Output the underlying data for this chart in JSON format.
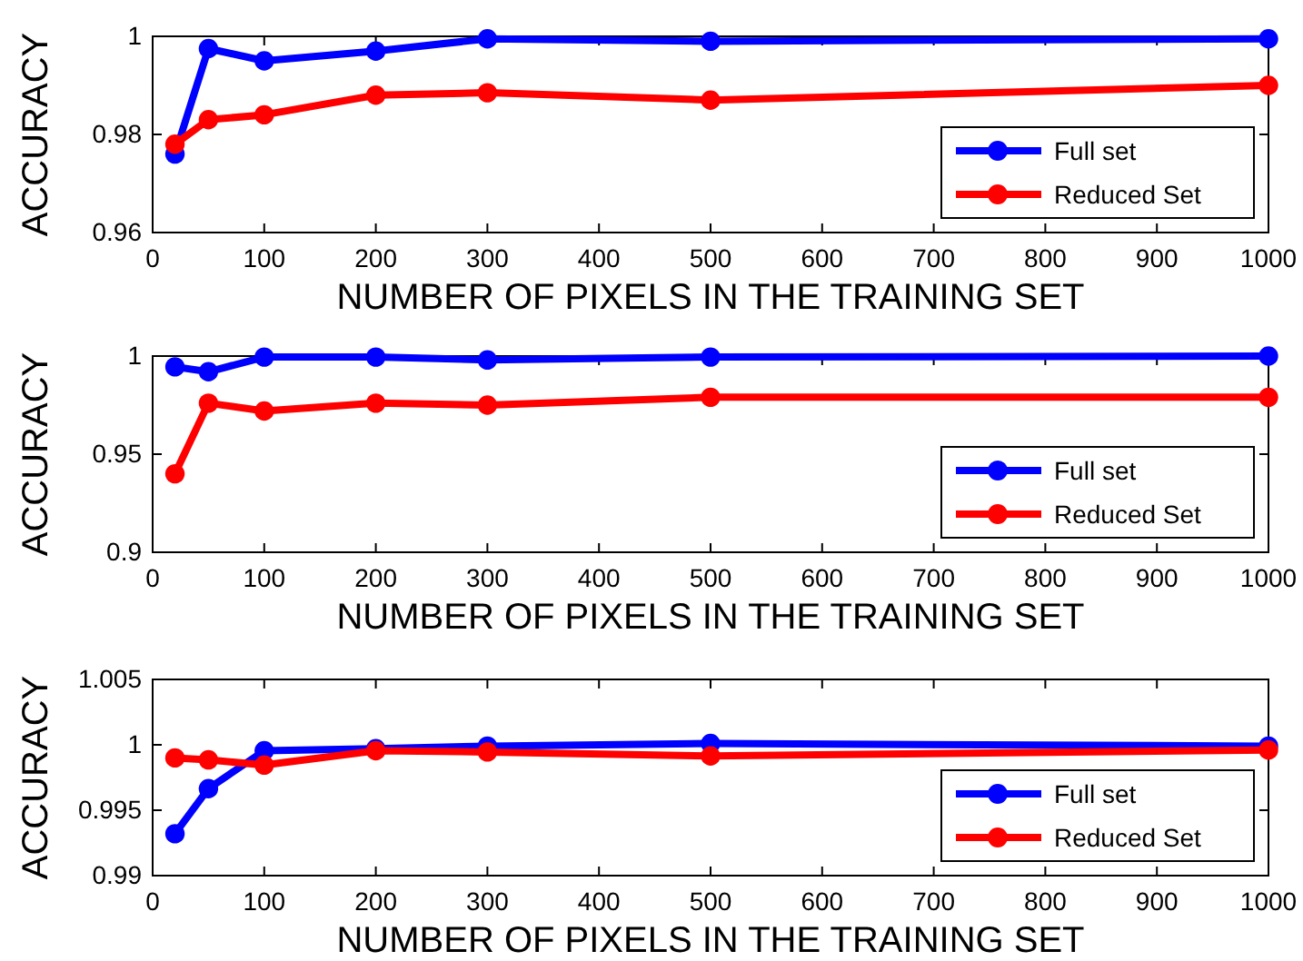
{
  "chart_data": [
    {
      "type": "line",
      "xlabel": "NUMBER OF PIXELS IN THE TRAINING SET",
      "ylabel": "ACCURACY",
      "x": [
        20,
        50,
        100,
        200,
        300,
        500,
        1000
      ],
      "series": [
        {
          "name": "Full set",
          "color": "#0000ff",
          "values": [
            0.976,
            0.9975,
            0.995,
            0.997,
            0.9995,
            0.999,
            0.9995
          ]
        },
        {
          "name": "Reduced Set",
          "color": "#ff0000",
          "values": [
            0.978,
            0.983,
            0.984,
            0.988,
            0.9885,
            0.987,
            0.99
          ]
        }
      ],
      "xlim": [
        0,
        1000
      ],
      "xticks": [
        0,
        100,
        200,
        300,
        400,
        500,
        600,
        700,
        800,
        900,
        1000
      ],
      "ylim": [
        0.96,
        1
      ],
      "yticks": [
        0.96,
        0.98,
        1
      ],
      "legend": "bottom right",
      "marker": "circle"
    },
    {
      "type": "line",
      "xlabel": "NUMBER OF PIXELS IN THE TRAINING SET",
      "ylabel": "ACCURACY",
      "x": [
        20,
        50,
        100,
        200,
        300,
        500,
        1000
      ],
      "series": [
        {
          "name": "Full set",
          "color": "#0000ff",
          "values": [
            0.9945,
            0.992,
            0.9995,
            0.9995,
            0.998,
            0.9995,
            1.0
          ]
        },
        {
          "name": "Reduced Set",
          "color": "#ff0000",
          "values": [
            0.94,
            0.976,
            0.972,
            0.976,
            0.975,
            0.979,
            0.979
          ]
        }
      ],
      "xlim": [
        0,
        1000
      ],
      "xticks": [
        0,
        100,
        200,
        300,
        400,
        500,
        600,
        700,
        800,
        900,
        1000
      ],
      "ylim": [
        0.9,
        1
      ],
      "yticks": [
        0.9,
        0.95,
        1
      ],
      "legend": "bottom right",
      "marker": "circle"
    },
    {
      "type": "line",
      "xlabel": "NUMBER OF PIXELS IN THE TRAINING SET",
      "ylabel": "ACCURACY",
      "x": [
        20,
        50,
        100,
        200,
        300,
        500,
        1000
      ],
      "series": [
        {
          "name": "Full set",
          "color": "#0000ff",
          "values": [
            0.9932,
            0.99665,
            0.99955,
            0.9997,
            0.9999,
            1.0001,
            0.9999
          ]
        },
        {
          "name": "Reduced Set",
          "color": "#ff0000",
          "values": [
            0.999,
            0.99885,
            0.99845,
            0.99955,
            0.99945,
            0.99915,
            0.9996
          ]
        }
      ],
      "xlim": [
        0,
        1000
      ],
      "xticks": [
        0,
        100,
        200,
        300,
        400,
        500,
        600,
        700,
        800,
        900,
        1000
      ],
      "ylim": [
        0.99,
        1.005
      ],
      "yticks": [
        0.99,
        0.995,
        1,
        1.005
      ],
      "legend": "bottom right",
      "marker": "circle"
    }
  ]
}
